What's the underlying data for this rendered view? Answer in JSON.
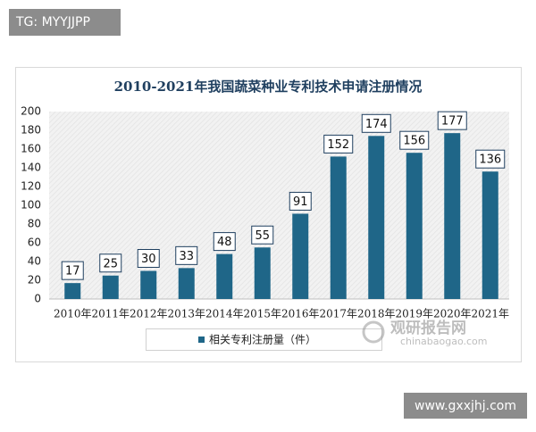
{
  "tag_top": "TG: MYYJJPP",
  "tag_bottom": "www.gxxjhj.com",
  "watermark": {
    "name": "观研报告网",
    "url": "chinabaogao.com"
  },
  "chart_data": {
    "type": "bar",
    "title": "2010-2021年我国蔬菜种业专利技术申请注册情况",
    "categories": [
      "2010年",
      "2011年",
      "2012年",
      "2013年",
      "2014年",
      "2015年",
      "2016年",
      "2017年",
      "2018年",
      "2019年",
      "2020年",
      "2021年"
    ],
    "series": [
      {
        "name": "相关专利注册量（件）",
        "color": "#1f6688",
        "values": [
          17,
          25,
          30,
          33,
          48,
          55,
          91,
          152,
          174,
          156,
          177,
          136
        ]
      }
    ],
    "ylim": [
      0,
      200
    ],
    "yticks": [
      0,
      20,
      40,
      60,
      80,
      100,
      120,
      140,
      160,
      180,
      200
    ],
    "grid": false,
    "legend": "bottom"
  }
}
